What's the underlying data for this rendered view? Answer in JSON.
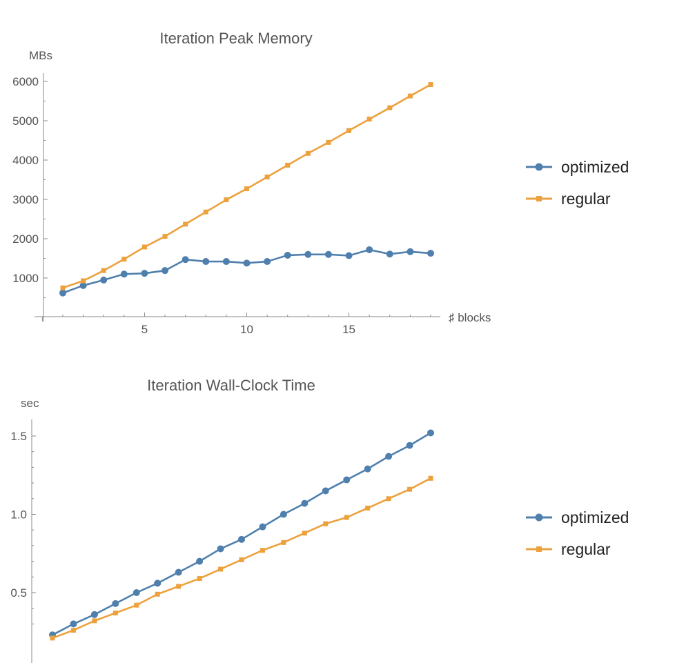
{
  "chart_data": [
    {
      "type": "line",
      "title": "Iteration Peak Memory",
      "ylabel": "MBs",
      "xlabel": "♯ blocks",
      "xlim": [
        0,
        19
      ],
      "ylim": [
        0,
        6000
      ],
      "x_ticks": [
        5,
        10,
        15
      ],
      "y_ticks": [
        1000,
        2000,
        3000,
        4000,
        5000,
        6000
      ],
      "grid": false,
      "legend_position": "right",
      "x": [
        1,
        2,
        3,
        4,
        5,
        6,
        7,
        8,
        9,
        10,
        11,
        12,
        13,
        14,
        15,
        16,
        17,
        18,
        19
      ],
      "series": [
        {
          "name": "optimized",
          "color": "#4f7fad",
          "marker": "circle",
          "values": [
            620,
            810,
            950,
            1100,
            1120,
            1190,
            1470,
            1420,
            1420,
            1380,
            1420,
            1580,
            1600,
            1600,
            1570,
            1720,
            1610,
            1670,
            1630
          ]
        },
        {
          "name": "regular",
          "color": "#eca13c",
          "marker": "square",
          "values": [
            750,
            930,
            1190,
            1480,
            1790,
            2060,
            2370,
            2680,
            2990,
            3270,
            3570,
            3870,
            4170,
            4450,
            4750,
            5040,
            5330,
            5630,
            5920
          ]
        }
      ]
    },
    {
      "type": "line",
      "title": "Iteration Wall-Clock Time",
      "ylabel": "sec",
      "xlabel": "",
      "xlim": [
        0,
        19
      ],
      "ylim": [
        0.18,
        1.6
      ],
      "x_ticks": [],
      "y_ticks": [
        "0.5",
        "1.0",
        "1.5"
      ],
      "grid": false,
      "legend_position": "right",
      "x": [
        1,
        2,
        3,
        4,
        5,
        6,
        7,
        8,
        9,
        10,
        11,
        12,
        13,
        14,
        15,
        16,
        17,
        18,
        19
      ],
      "series": [
        {
          "name": "optimized",
          "color": "#4f7fad",
          "marker": "circle",
          "values": [
            0.23,
            0.3,
            0.36,
            0.43,
            0.5,
            0.56,
            0.63,
            0.7,
            0.78,
            0.84,
            0.92,
            1.0,
            1.07,
            1.15,
            1.22,
            1.29,
            1.37,
            1.44,
            1.52
          ]
        },
        {
          "name": "regular",
          "color": "#eca13c",
          "marker": "square",
          "values": [
            0.21,
            0.26,
            0.32,
            0.37,
            0.42,
            0.49,
            0.54,
            0.59,
            0.65,
            0.71,
            0.77,
            0.82,
            0.88,
            0.94,
            0.98,
            1.04,
            1.1,
            1.16,
            1.23
          ]
        }
      ]
    }
  ]
}
